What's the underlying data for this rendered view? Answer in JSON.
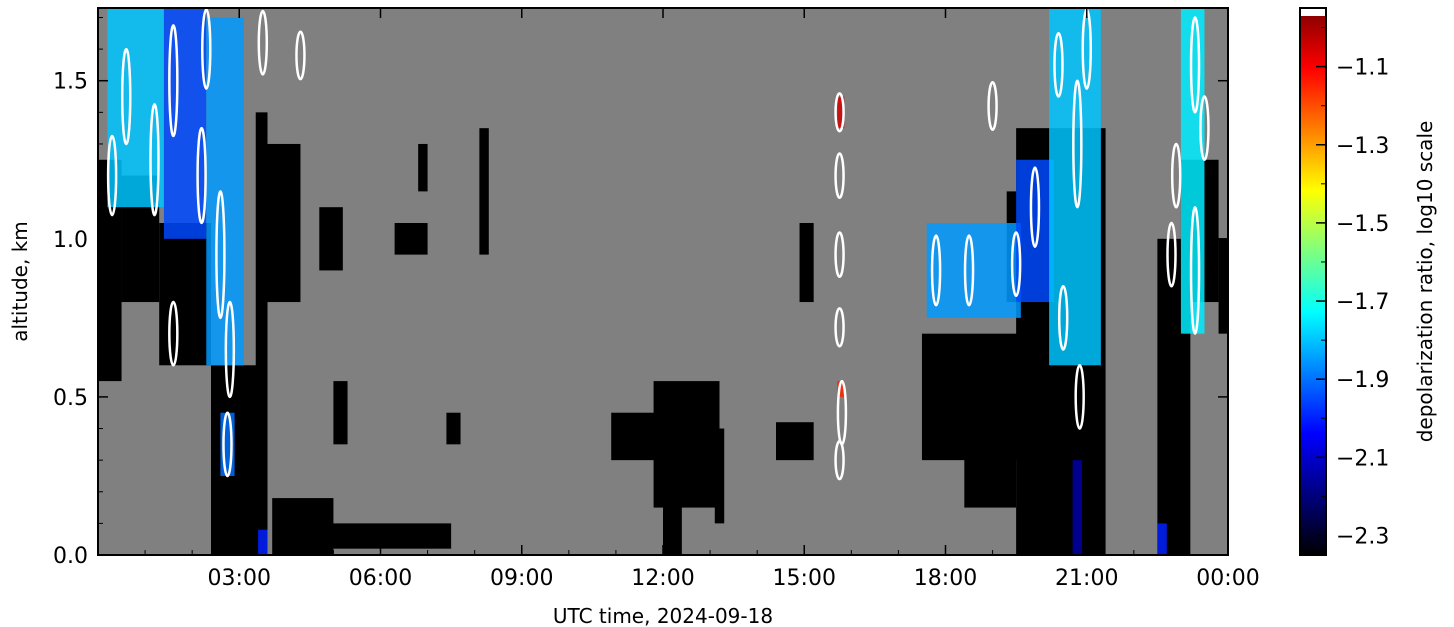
{
  "chart_data": {
    "type": "heatmap",
    "title": "",
    "xlabel": "UTC time,  2024-09-18",
    "ylabel": "altitude, km",
    "xlim_hours": [
      0.0,
      24.0
    ],
    "ylim": [
      0.0,
      1.73
    ],
    "x_ticks": [
      {
        "hour": 3,
        "label": "03:00"
      },
      {
        "hour": 6,
        "label": "06:00"
      },
      {
        "hour": 9,
        "label": "09:00"
      },
      {
        "hour": 12,
        "label": "12:00"
      },
      {
        "hour": 15,
        "label": "15:00"
      },
      {
        "hour": 18,
        "label": "18:00"
      },
      {
        "hour": 21,
        "label": "21:00"
      },
      {
        "hour": 24,
        "label": "00:00"
      }
    ],
    "y_ticks": [
      {
        "value": 0.0,
        "label": "0.0"
      },
      {
        "value": 0.5,
        "label": "0.5"
      },
      {
        "value": 1.0,
        "label": "1.0"
      },
      {
        "value": 1.5,
        "label": "1.5"
      }
    ],
    "background_color": "#808080",
    "grid": false,
    "colorbar": {
      "label": "depolarization ratio, log10 scale",
      "range": [
        -2.35,
        -0.95
      ],
      "ticks": [
        {
          "value": -1.1,
          "label": "−1.1"
        },
        {
          "value": -1.3,
          "label": "−1.3"
        },
        {
          "value": -1.5,
          "label": "−1.5"
        },
        {
          "value": -1.7,
          "label": "−1.7"
        },
        {
          "value": -1.9,
          "label": "−1.9"
        },
        {
          "value": -2.1,
          "label": "−2.1"
        },
        {
          "value": -2.3,
          "label": "−2.3"
        }
      ],
      "colors": [
        "#000000",
        "#00007f",
        "#0000ff",
        "#007fff",
        "#00ffff",
        "#7fff7f",
        "#ffff00",
        "#ff7f00",
        "#ff0000",
        "#7f0000"
      ]
    },
    "black_regions": [
      {
        "t0": 0.0,
        "t1": 0.5,
        "z0": 0.55,
        "z1": 1.25
      },
      {
        "t0": 0.5,
        "t1": 1.3,
        "z0": 0.8,
        "z1": 1.2
      },
      {
        "t0": 1.3,
        "t1": 2.4,
        "z0": 0.6,
        "z1": 1.05
      },
      {
        "t0": 2.4,
        "t1": 3.5,
        "z0": 0.0,
        "z1": 0.6
      },
      {
        "t0": 3.35,
        "t1": 3.6,
        "z0": 0.0,
        "z1": 1.4
      },
      {
        "t0": 3.6,
        "t1": 4.3,
        "z0": 0.8,
        "z1": 1.3
      },
      {
        "t0": 3.7,
        "t1": 5.0,
        "z0": 0.0,
        "z1": 0.18
      },
      {
        "t0": 4.0,
        "t1": 7.5,
        "z0": 0.02,
        "z1": 0.1
      },
      {
        "t0": 4.7,
        "t1": 5.2,
        "z0": 0.9,
        "z1": 1.1
      },
      {
        "t0": 5.0,
        "t1": 5.3,
        "z0": 0.35,
        "z1": 0.55
      },
      {
        "t0": 6.3,
        "t1": 7.0,
        "z0": 0.95,
        "z1": 1.05
      },
      {
        "t0": 6.8,
        "t1": 7.0,
        "z0": 1.15,
        "z1": 1.3
      },
      {
        "t0": 7.4,
        "t1": 7.7,
        "z0": 0.35,
        "z1": 0.45
      },
      {
        "t0": 8.1,
        "t1": 8.3,
        "z0": 0.95,
        "z1": 1.35
      },
      {
        "t0": 10.9,
        "t1": 12.3,
        "z0": 0.3,
        "z1": 0.45
      },
      {
        "t0": 11.8,
        "t1": 13.2,
        "z0": 0.15,
        "z1": 0.55
      },
      {
        "t0": 12.0,
        "t1": 12.4,
        "z0": 0.0,
        "z1": 0.4
      },
      {
        "t0": 13.1,
        "t1": 13.3,
        "z0": 0.1,
        "z1": 0.4
      },
      {
        "t0": 14.4,
        "t1": 15.2,
        "z0": 0.3,
        "z1": 0.42
      },
      {
        "t0": 14.9,
        "t1": 15.2,
        "z0": 0.8,
        "z1": 1.05
      },
      {
        "t0": 17.5,
        "t1": 19.6,
        "z0": 0.3,
        "z1": 0.7
      },
      {
        "t0": 18.4,
        "t1": 19.5,
        "z0": 0.15,
        "z1": 0.45
      },
      {
        "t0": 19.5,
        "t1": 21.4,
        "z0": 0.0,
        "z1": 1.35
      },
      {
        "t0": 19.3,
        "t1": 19.7,
        "z0": 0.8,
        "z1": 1.15
      },
      {
        "t0": 22.5,
        "t1": 23.2,
        "z0": 0.0,
        "z1": 1.0
      },
      {
        "t0": 23.0,
        "t1": 23.8,
        "z0": 0.8,
        "z1": 1.25
      },
      {
        "t0": 23.8,
        "t1": 24.0,
        "z0": 0.7,
        "z1": 1.0
      }
    ],
    "colored_regions": [
      {
        "t0": 0.2,
        "t1": 1.4,
        "z0": 1.1,
        "z1": 1.73,
        "dr": -1.8
      },
      {
        "t0": 1.4,
        "t1": 2.3,
        "z0": 1.0,
        "z1": 1.73,
        "dr": -1.95
      },
      {
        "t0": 2.3,
        "t1": 3.1,
        "z0": 0.6,
        "z1": 1.7,
        "dr": -1.85
      },
      {
        "t0": 2.6,
        "t1": 2.9,
        "z0": 0.25,
        "z1": 0.45,
        "dr": -1.9
      },
      {
        "t0": 3.4,
        "t1": 3.6,
        "z0": 0.0,
        "z1": 0.08,
        "dr": -2.0
      },
      {
        "t0": 15.7,
        "t1": 15.85,
        "z0": 1.35,
        "z1": 1.45,
        "dr": -1.05
      },
      {
        "t0": 15.7,
        "t1": 15.85,
        "z0": 0.5,
        "z1": 0.55,
        "dr": -1.15
      },
      {
        "t0": 17.6,
        "t1": 19.6,
        "z0": 0.75,
        "z1": 1.05,
        "dr": -1.85
      },
      {
        "t0": 19.5,
        "t1": 20.3,
        "z0": 0.8,
        "z1": 1.25,
        "dr": -1.95
      },
      {
        "t0": 20.2,
        "t1": 21.3,
        "z0": 0.6,
        "z1": 1.73,
        "dr": -1.8
      },
      {
        "t0": 20.7,
        "t1": 20.9,
        "z0": 0.0,
        "z1": 0.3,
        "dr": -2.15
      },
      {
        "t0": 23.0,
        "t1": 23.5,
        "z0": 0.7,
        "z1": 1.73,
        "dr": -1.75
      },
      {
        "t0": 22.5,
        "t1": 22.7,
        "z0": 0.0,
        "z1": 0.1,
        "dr": -2.0
      }
    ],
    "cloud_contours": [
      {
        "t": 0.3,
        "z": 1.2,
        "h": 0.25
      },
      {
        "t": 0.6,
        "z": 1.45,
        "h": 0.3
      },
      {
        "t": 1.2,
        "z": 1.25,
        "h": 0.35
      },
      {
        "t": 1.6,
        "z": 1.5,
        "h": 0.35
      },
      {
        "t": 2.3,
        "z": 1.6,
        "h": 0.25
      },
      {
        "t": 2.2,
        "z": 1.2,
        "h": 0.3
      },
      {
        "t": 2.6,
        "z": 0.95,
        "h": 0.4
      },
      {
        "t": 2.8,
        "z": 0.65,
        "h": 0.3
      },
      {
        "t": 2.75,
        "z": 0.35,
        "h": 0.2
      },
      {
        "t": 1.6,
        "z": 0.7,
        "h": 0.2
      },
      {
        "t": 3.5,
        "z": 1.62,
        "h": 0.2
      },
      {
        "t": 4.3,
        "z": 1.58,
        "h": 0.15
      },
      {
        "t": 15.75,
        "z": 1.4,
        "h": 0.12
      },
      {
        "t": 15.75,
        "z": 1.2,
        "h": 0.14
      },
      {
        "t": 15.75,
        "z": 0.95,
        "h": 0.14
      },
      {
        "t": 15.75,
        "z": 0.72,
        "h": 0.12
      },
      {
        "t": 15.8,
        "z": 0.45,
        "h": 0.2
      },
      {
        "t": 15.75,
        "z": 0.3,
        "h": 0.12
      },
      {
        "t": 17.8,
        "z": 0.9,
        "h": 0.22
      },
      {
        "t": 18.5,
        "z": 0.9,
        "h": 0.22
      },
      {
        "t": 19.0,
        "z": 1.42,
        "h": 0.15
      },
      {
        "t": 19.5,
        "z": 0.92,
        "h": 0.2
      },
      {
        "t": 19.9,
        "z": 1.1,
        "h": 0.25
      },
      {
        "t": 20.4,
        "z": 1.55,
        "h": 0.2
      },
      {
        "t": 20.5,
        "z": 0.75,
        "h": 0.2
      },
      {
        "t": 20.8,
        "z": 1.3,
        "h": 0.4
      },
      {
        "t": 20.85,
        "z": 0.5,
        "h": 0.2
      },
      {
        "t": 21.0,
        "z": 1.6,
        "h": 0.25
      },
      {
        "t": 22.9,
        "z": 1.2,
        "h": 0.2
      },
      {
        "t": 22.8,
        "z": 0.95,
        "h": 0.2
      },
      {
        "t": 23.3,
        "z": 1.55,
        "h": 0.3
      },
      {
        "t": 23.3,
        "z": 0.9,
        "h": 0.4
      },
      {
        "t": 23.5,
        "z": 1.35,
        "h": 0.2
      }
    ]
  }
}
